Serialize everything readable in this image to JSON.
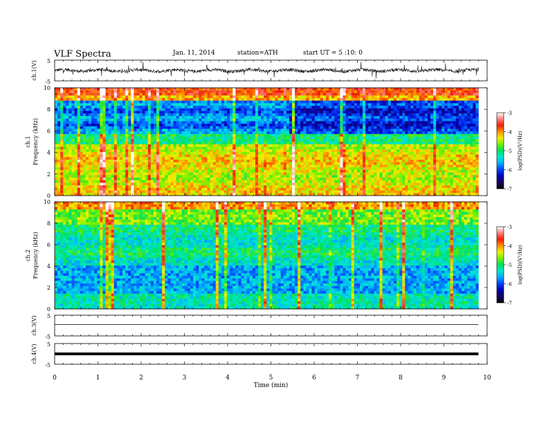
{
  "header": {
    "title": "VLF  Spectra",
    "date": "Jan. 11, 2014",
    "station": "station=ATH",
    "start": "start  UT  =   5  :10: 0"
  },
  "colors": {
    "colormap": [
      "#000000",
      "#1a0060",
      "#0000b0",
      "#0040ff",
      "#00a8ff",
      "#00e8d0",
      "#00e060",
      "#70f000",
      "#f0f000",
      "#ff9000",
      "#f02000",
      "#ff8080",
      "#ffffff"
    ]
  },
  "chart_data": [
    {
      "type": "line",
      "panel": "ch1-waveform",
      "ylabel": "ch.1(V)",
      "yticks": [
        "5",
        "-5"
      ],
      "ylim": [
        -5,
        5
      ],
      "note": "noisy waveform centred near 0 V with sferic spikes up to about ±4 V"
    },
    {
      "type": "heatmap",
      "panel": "ch1-spectrogram",
      "ylabel": "ch.1\nFrequency (kHz)",
      "ylim": [
        0,
        10
      ],
      "yticks": [
        "0",
        "2",
        "4",
        "6",
        "8",
        "10"
      ],
      "x_range_min": [
        0,
        9.8
      ],
      "colorbar": {
        "label": "log(PSD)(V²/Hz)",
        "range": [
          -7,
          -3
        ],
        "ticks": [
          "-3",
          "-4",
          "-5",
          "-6",
          "-7"
        ]
      }
    },
    {
      "type": "heatmap",
      "panel": "ch2-spectrogram",
      "ylabel": "ch.2\nFrequency (kHz)",
      "ylim": [
        0,
        10
      ],
      "yticks": [
        "0",
        "2",
        "4",
        "6",
        "8",
        "10"
      ],
      "x_range_min": [
        0,
        9.8
      ],
      "colorbar": {
        "label": "log(PSD)(V²/Hz)",
        "range": [
          -7,
          -3
        ],
        "ticks": [
          "-3",
          "-4",
          "-5",
          "-6",
          "-7"
        ]
      }
    },
    {
      "type": "line",
      "panel": "ch3-waveform",
      "ylabel": "ch.3(V)",
      "yticks": [
        "5",
        "-5"
      ],
      "ylim": [
        -5,
        5
      ],
      "constant_value": 0.5
    },
    {
      "type": "line",
      "panel": "ch4-waveform",
      "ylabel": "ch.4(V)",
      "yticks": [
        "5",
        "-5"
      ],
      "ylim": [
        -5,
        5
      ],
      "constant_value": 0
    }
  ],
  "xaxis": {
    "label": "Time  (min)",
    "ticks": [
      "0",
      "1",
      "2",
      "3",
      "4",
      "5",
      "6",
      "7",
      "8",
      "9",
      "10"
    ],
    "range": [
      0,
      10
    ]
  }
}
